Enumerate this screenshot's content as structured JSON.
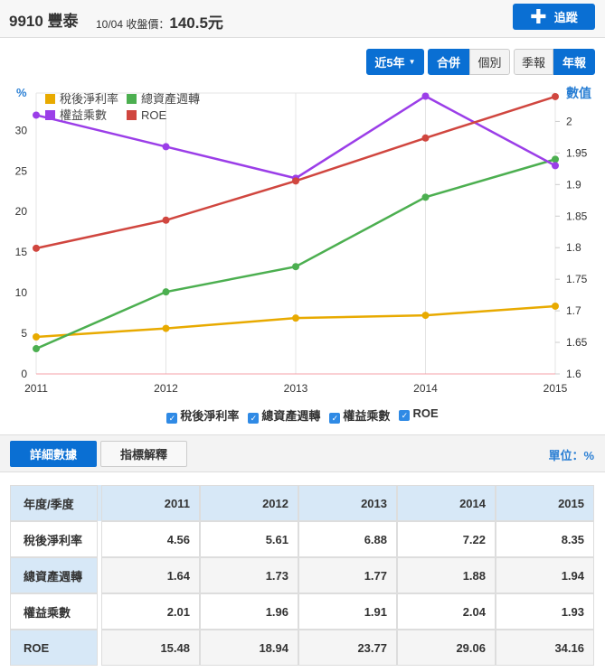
{
  "header": {
    "stock": "9910 豐泰",
    "date_label": "10/04 收盤價：",
    "price": "140.5元",
    "track_label": "追蹤"
  },
  "controls": {
    "period": "近5年",
    "consolidated": "合併",
    "individual": "個別",
    "quarterly": "季報",
    "annual": "年報"
  },
  "tabs": {
    "detail": "詳細數據",
    "explain": "指標解釋",
    "unit": "單位：%"
  },
  "colors": {
    "net_margin": "#e8aa00",
    "turnover": "#4caf50",
    "multiplier": "#9b3ee8",
    "roe": "#d0463f",
    "accent": "#0a6fd3"
  },
  "chart_data": {
    "type": "line",
    "x": [
      "2011",
      "2012",
      "2013",
      "2014",
      "2015"
    ],
    "left_axis": {
      "label": "%",
      "ticks": [
        "0",
        "5",
        "10",
        "15",
        "20",
        "25",
        "30"
      ],
      "range": [
        0,
        34.6
      ]
    },
    "right_axis": {
      "label": "數值",
      "ticks": [
        "1.6",
        "1.65",
        "1.7",
        "1.75",
        "1.8",
        "1.85",
        "1.9",
        "1.95",
        "2"
      ],
      "range": [
        1.6,
        2.045
      ]
    },
    "series": [
      {
        "name": "稅後淨利率",
        "axis": "left",
        "color": "#e8aa00",
        "values": [
          4.56,
          5.61,
          6.88,
          7.22,
          8.35
        ]
      },
      {
        "name": "總資產週轉",
        "axis": "right",
        "color": "#4caf50",
        "values": [
          1.64,
          1.73,
          1.77,
          1.88,
          1.94
        ]
      },
      {
        "name": "權益乘數",
        "axis": "right",
        "color": "#9b3ee8",
        "values": [
          2.01,
          1.96,
          1.91,
          2.04,
          1.93
        ]
      },
      {
        "name": "ROE",
        "axis": "left",
        "color": "#d0463f",
        "values": [
          15.48,
          18.94,
          23.77,
          29.06,
          34.16
        ]
      }
    ]
  },
  "table": {
    "header": [
      "年度/季度",
      "2011",
      "2012",
      "2013",
      "2014",
      "2015"
    ],
    "rows": [
      [
        "稅後淨利率",
        "4.56",
        "5.61",
        "6.88",
        "7.22",
        "8.35"
      ],
      [
        "總資產週轉",
        "1.64",
        "1.73",
        "1.77",
        "1.88",
        "1.94"
      ],
      [
        "權益乘數",
        "2.01",
        "1.96",
        "1.91",
        "2.04",
        "1.93"
      ],
      [
        "ROE",
        "15.48",
        "18.94",
        "23.77",
        "29.06",
        "34.16"
      ]
    ]
  }
}
